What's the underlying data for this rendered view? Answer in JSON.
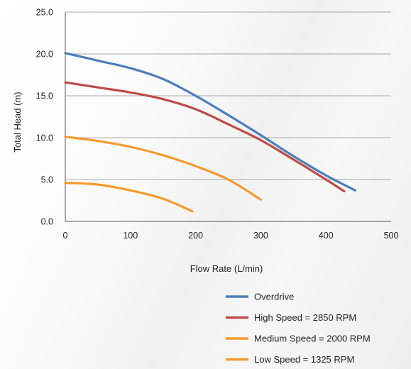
{
  "chart_data": {
    "type": "line",
    "xlabel": "Flow Rate (L/min)",
    "ylabel": "Total Head (m)",
    "xlim": [
      0,
      500
    ],
    "ylim": [
      0,
      25
    ],
    "xticks": [
      "0",
      "100",
      "200",
      "300",
      "400",
      "500"
    ],
    "yticks": [
      "0.0",
      "5.0",
      "10.0",
      "15.0",
      "20.0",
      "25.0"
    ],
    "grid": "horizontal",
    "legend_position": "bottom-right",
    "series": [
      {
        "name": "Overdrive",
        "color": "#4a7ebb",
        "points": [
          [
            0,
            20.1
          ],
          [
            50,
            19.2
          ],
          [
            100,
            18.3
          ],
          [
            150,
            17.0
          ],
          [
            200,
            15.0
          ],
          [
            250,
            12.7
          ],
          [
            300,
            10.3
          ],
          [
            350,
            7.8
          ],
          [
            400,
            5.5
          ],
          [
            445,
            3.7
          ]
        ]
      },
      {
        "name": "High Speed = 2850 RPM",
        "color": "#be4b48",
        "points": [
          [
            0,
            16.6
          ],
          [
            50,
            16.0
          ],
          [
            100,
            15.4
          ],
          [
            150,
            14.6
          ],
          [
            200,
            13.4
          ],
          [
            250,
            11.6
          ],
          [
            300,
            9.7
          ],
          [
            350,
            7.4
          ],
          [
            400,
            5.0
          ],
          [
            428,
            3.6
          ]
        ]
      },
      {
        "name": "Medium Speed = 2000 RPM",
        "color": "#f79a2e",
        "points": [
          [
            0,
            10.1
          ],
          [
            50,
            9.6
          ],
          [
            100,
            8.9
          ],
          [
            150,
            7.9
          ],
          [
            200,
            6.6
          ],
          [
            250,
            5.0
          ],
          [
            300,
            2.6
          ]
        ]
      },
      {
        "name": "Low Speed = 1325 RPM",
        "color": "#f79a2e",
        "points": [
          [
            0,
            4.6
          ],
          [
            50,
            4.4
          ],
          [
            100,
            3.7
          ],
          [
            150,
            2.7
          ],
          [
            195,
            1.2
          ]
        ]
      }
    ]
  }
}
